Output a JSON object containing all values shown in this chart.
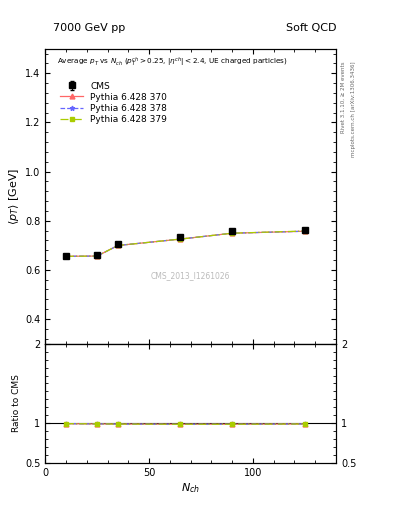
{
  "title_left": "7000 GeV pp",
  "title_right": "Soft QCD",
  "watermark": "CMS_2013_I1261026",
  "right_label_top": "Rivet 3.1.10, ≥ 2M events",
  "right_label_bot": "mcplots.cern.ch [arXiv:1306.3436]",
  "cms_x": [
    10,
    25,
    35,
    65,
    90,
    125
  ],
  "cms_y": [
    0.658,
    0.66,
    0.705,
    0.733,
    0.757,
    0.763
  ],
  "cms_yerr": [
    0.004,
    0.004,
    0.004,
    0.004,
    0.004,
    0.004
  ],
  "py370_x": [
    10,
    25,
    35,
    65,
    90,
    125
  ],
  "py370_y": [
    0.655,
    0.656,
    0.699,
    0.725,
    0.749,
    0.757
  ],
  "py378_x": [
    10,
    25,
    35,
    65,
    90,
    125
  ],
  "py378_y": [
    0.655,
    0.656,
    0.699,
    0.725,
    0.749,
    0.757
  ],
  "py379_x": [
    10,
    25,
    35,
    65,
    90,
    125
  ],
  "py379_y": [
    0.655,
    0.656,
    0.699,
    0.725,
    0.749,
    0.758
  ],
  "ratio370": [
    0.997,
    0.994,
    0.992,
    0.99,
    0.99,
    0.993
  ],
  "ratio378": [
    0.997,
    0.994,
    0.992,
    0.99,
    0.99,
    0.993
  ],
  "ratio379": [
    0.997,
    0.994,
    0.992,
    0.99,
    0.99,
    0.993
  ],
  "ylim_main": [
    0.3,
    1.5
  ],
  "ylim_ratio": [
    0.5,
    2.0
  ],
  "xlim": [
    0,
    140
  ],
  "color_cms": "#000000",
  "color_370": "#ff6666",
  "color_378": "#6666ff",
  "color_379": "#aacc00",
  "background": "#ffffff"
}
